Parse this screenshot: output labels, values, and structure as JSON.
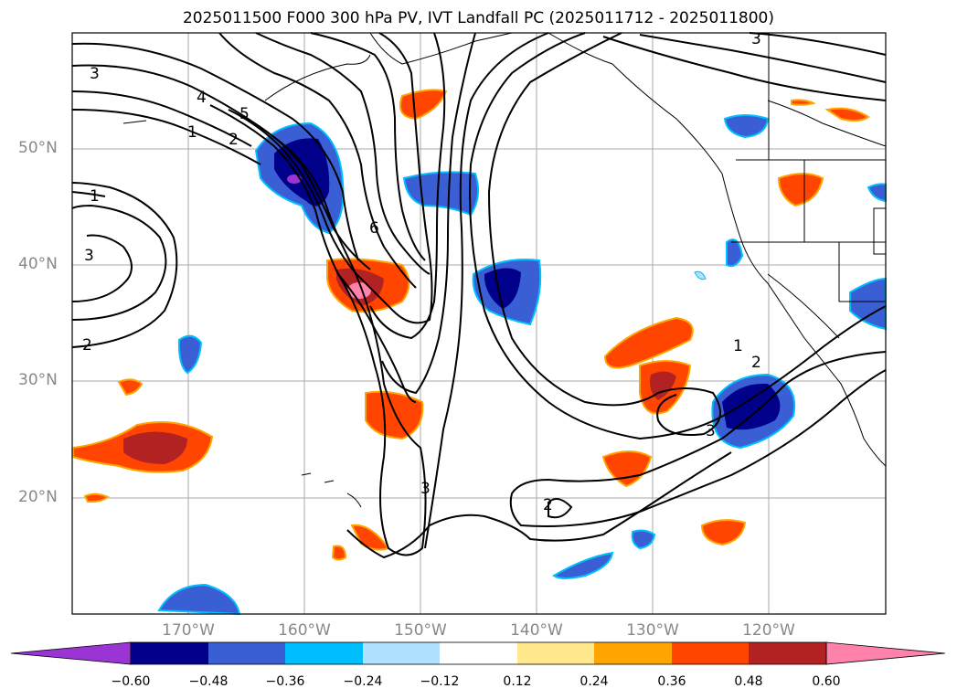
{
  "title": "2025011500 F000 300 hPa PV, IVT Landfall PC (2025011712 - 2025011800)",
  "lat_labels": [
    "50°N",
    "40°N",
    "30°N",
    "20°N"
  ],
  "lon_labels": [
    "170°W",
    "160°W",
    "150°W",
    "140°W",
    "130°W",
    "120°W"
  ],
  "contour_labels": [
    "3",
    "4",
    "5",
    "1",
    "2",
    "1",
    "3",
    "2",
    "6",
    "1",
    "2",
    "3",
    "3",
    "2",
    "3"
  ],
  "colorbar": {
    "ticks": [
      "−0.60",
      "−0.48",
      "−0.36",
      "−0.24",
      "−0.12",
      "0.12",
      "0.24",
      "0.36",
      "0.48",
      "0.60"
    ],
    "colors": [
      "#9a34d4",
      "#00008b",
      "#3a5fd4",
      "#00bfff",
      "#b0e2ff",
      "#ffffff",
      "#ffe98c",
      "#ffa500",
      "#ff4500",
      "#b22222",
      "#ff82ab"
    ]
  },
  "colors": {
    "grid": "#a8a8a8",
    "contour": "#000000",
    "axis_label": "#888888"
  }
}
